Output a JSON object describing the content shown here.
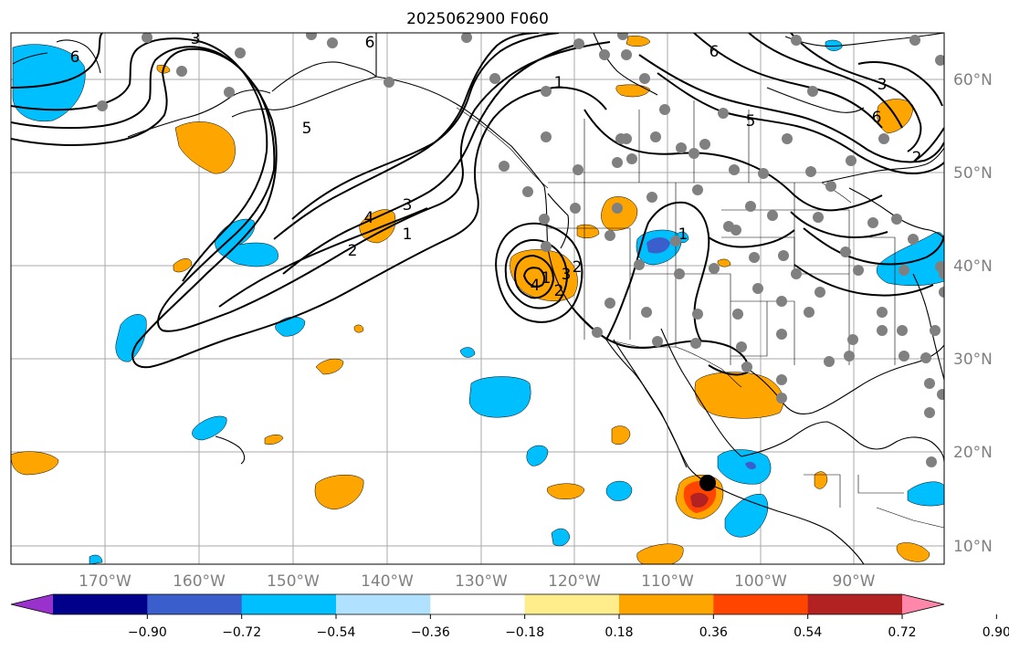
{
  "title": "2025062900 F060",
  "lat_labels": [
    "60°N",
    "50°N",
    "40°N",
    "30°N",
    "20°N",
    "10°N"
  ],
  "lon_labels": [
    "170°W",
    "160°W",
    "150°W",
    "140°W",
    "130°W",
    "120°W",
    "110°W",
    "100°W",
    "90°W"
  ],
  "colorbar": {
    "ticks": [
      "−0.90",
      "−0.72",
      "−0.54",
      "−0.36",
      "−0.18",
      "0.18",
      "0.36",
      "0.54",
      "0.72",
      "0.90"
    ],
    "colors": [
      "#9932cc",
      "#00008b",
      "#3a5fcd",
      "#00bfff",
      "#b0e2ff",
      "#ffffff",
      "#ffec8b",
      "#ffa500",
      "#ff4500",
      "#b22222",
      "#ff88aa"
    ]
  },
  "contour_labels": [
    "6",
    "3",
    "1",
    "5",
    "6",
    "2",
    "6",
    "4",
    "3",
    "1",
    "2",
    "1",
    "3",
    "2",
    "4",
    "5",
    "6",
    "3",
    "2",
    "1"
  ],
  "colors": {
    "gridline": "#a9a9a9",
    "station_dot": "#808080",
    "negative_fill": "#00bfff",
    "positive_fill": "#ffa500"
  }
}
